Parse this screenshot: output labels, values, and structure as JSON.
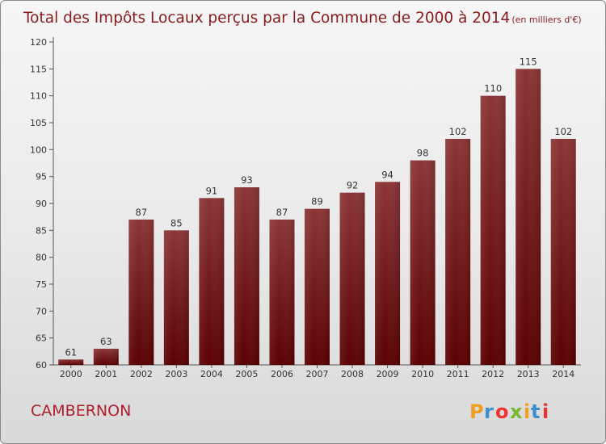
{
  "title": "Total des Impôts Locaux perçus par la Commune de 2000 à 2014",
  "unit": "(en milliers d'€)",
  "commune": "CAMBERNON",
  "brand": "Proxiti",
  "colors": {
    "bar_top": "#8b3535",
    "bar_bottom": "#5a0000",
    "title": "#8b1a1a"
  },
  "chart_data": {
    "type": "bar",
    "title": "Total des Impôts Locaux perçus par la Commune de 2000 à 2014",
    "subtitle": "(en milliers d'€)",
    "xlabel": "",
    "ylabel": "",
    "categories": [
      "2000",
      "2001",
      "2002",
      "2003",
      "2004",
      "2005",
      "2006",
      "2007",
      "2008",
      "2009",
      "2010",
      "2011",
      "2012",
      "2013",
      "2014"
    ],
    "values": [
      61,
      63,
      87,
      85,
      91,
      93,
      87,
      89,
      92,
      94,
      98,
      102,
      110,
      115,
      102
    ],
    "ylim": [
      60,
      120
    ],
    "yticks": [
      60,
      65,
      70,
      75,
      80,
      85,
      90,
      95,
      100,
      105,
      110,
      115,
      120
    ],
    "grid": false,
    "data_labels": true
  }
}
